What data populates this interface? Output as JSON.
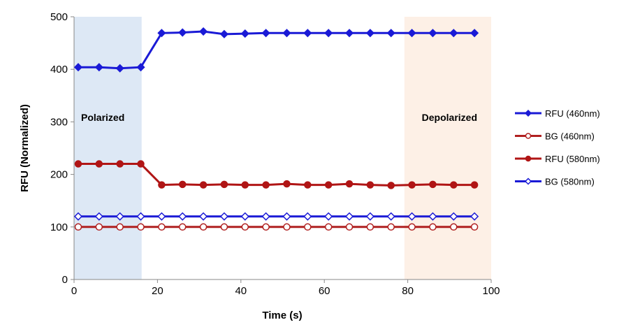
{
  "chart_data": {
    "type": "line",
    "title": "",
    "xlabel": "Time (s)",
    "ylabel": "RFU (Normalized)",
    "xlim": [
      0,
      100
    ],
    "ylim": [
      0,
      500
    ],
    "xticks": [
      0,
      20,
      40,
      60,
      80,
      100
    ],
    "yticks": [
      0,
      100,
      200,
      300,
      400,
      500
    ],
    "grid": false,
    "legend_position": "right",
    "x": [
      1,
      6,
      11,
      16,
      21,
      26,
      31,
      36,
      41,
      46,
      51,
      56,
      61,
      66,
      71,
      76,
      81,
      86,
      91,
      96
    ],
    "series": [
      {
        "name": "RFU (460nm)",
        "color": "#1a1ad6",
        "marker": "filled-diamond",
        "values": [
          404,
          404,
          402,
          404,
          469,
          470,
          472,
          467,
          468,
          469,
          469,
          469,
          469,
          469,
          469,
          469,
          469,
          469,
          469,
          469
        ]
      },
      {
        "name": "BG (460nm)",
        "color": "#b02020",
        "marker": "open-circle",
        "values": [
          100,
          100,
          100,
          100,
          100,
          100,
          100,
          100,
          100,
          100,
          100,
          100,
          100,
          100,
          100,
          100,
          100,
          100,
          100,
          100
        ]
      },
      {
        "name": "RFU (580nm)",
        "color": "#b01515",
        "marker": "filled-circle",
        "values": [
          220,
          220,
          220,
          220,
          180,
          181,
          180,
          181,
          180,
          180,
          182,
          180,
          180,
          182,
          180,
          179,
          180,
          181,
          180,
          180
        ]
      },
      {
        "name": "BG (580nm)",
        "color": "#1a1ad6",
        "marker": "open-diamond",
        "values": [
          120,
          120,
          120,
          120,
          120,
          120,
          120,
          120,
          120,
          120,
          120,
          120,
          120,
          120,
          120,
          120,
          120,
          120,
          120,
          120
        ]
      }
    ],
    "regions": [
      {
        "label": "Polarized",
        "x": [
          0,
          16.2
        ],
        "color": "#dde8f5"
      },
      {
        "label": "Depolarized",
        "x": [
          79.2,
          100
        ],
        "color": "#fdf0e6"
      }
    ]
  }
}
